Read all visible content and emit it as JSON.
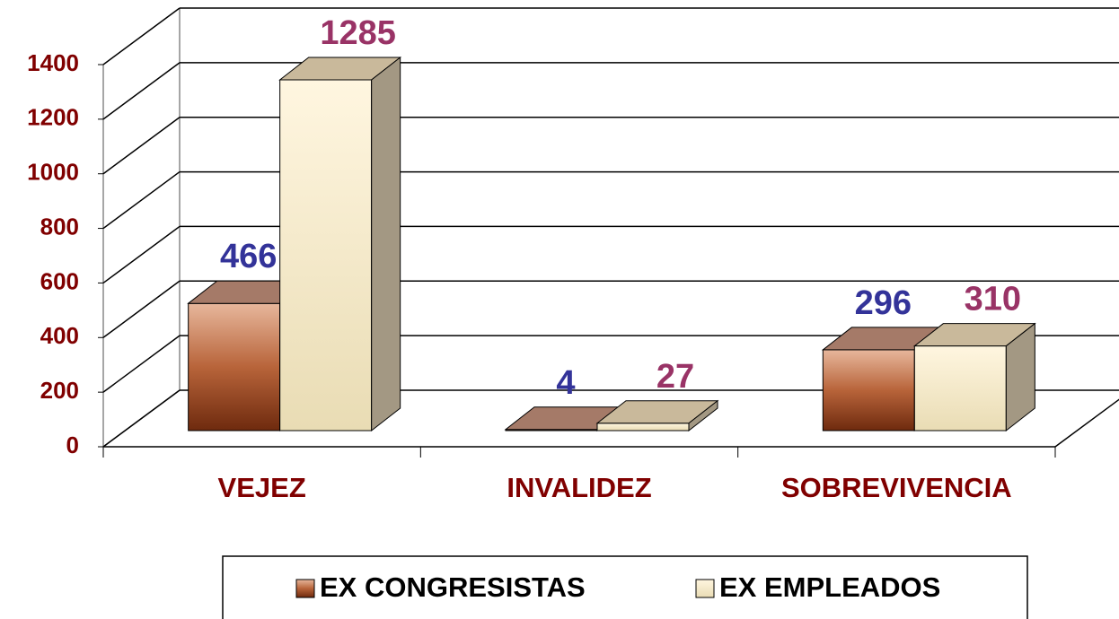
{
  "chart_data": {
    "type": "bar3d",
    "categories": [
      "VEJEZ",
      "INVALIDEZ",
      "SOBREVIVENCIA"
    ],
    "series": [
      {
        "name": "EX CONGRESISTAS",
        "color": "#b8643a",
        "label_color": "#333399",
        "values": [
          466,
          4,
          296
        ]
      },
      {
        "name": "EX EMPLEADOS",
        "color": "#f5ebcf",
        "label_color": "#993366",
        "values": [
          1285,
          27,
          310
        ]
      }
    ],
    "ylim": [
      0,
      1400
    ],
    "yticks": [
      0,
      200,
      400,
      600,
      800,
      1000,
      1200,
      1400
    ],
    "grid": true,
    "legend": "bottom"
  }
}
